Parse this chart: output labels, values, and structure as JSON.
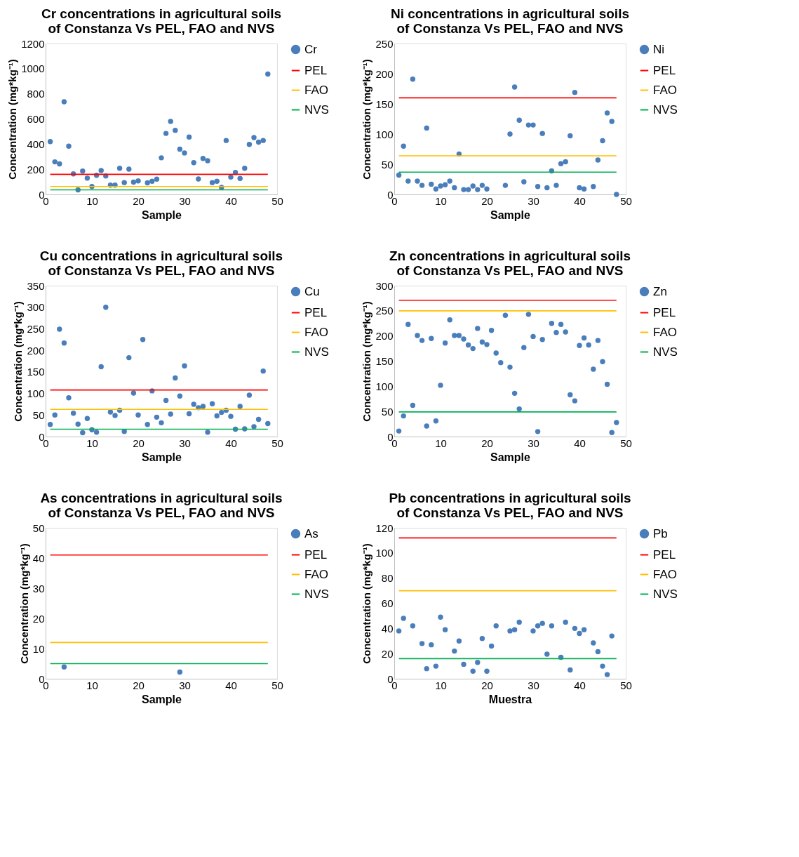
{
  "chart_data": [
    {
      "type": "scatter",
      "title": "Cr concentrations in agricultural soils of Constanza Vs PEL, FAO and NVS",
      "xlabel": "Sample",
      "ylabel": "Concentration (mg*kg⁻¹)",
      "xlim": [
        0,
        50
      ],
      "xticks": [
        0,
        10,
        20,
        30,
        40,
        50
      ],
      "ylim": [
        0,
        1200
      ],
      "yticks": [
        0,
        200,
        400,
        600,
        800,
        1000,
        1200
      ],
      "legend": "right",
      "series": [
        {
          "name": "Cr",
          "color": "#4a7ebb",
          "marker": "circle",
          "x": [
            1,
            2,
            3,
            4,
            5,
            6,
            7,
            8,
            9,
            10,
            11,
            12,
            13,
            14,
            15,
            16,
            17,
            18,
            19,
            20,
            22,
            23,
            24,
            25,
            26,
            27,
            28,
            29,
            30,
            31,
            32,
            33,
            34,
            35,
            36,
            37,
            38,
            39,
            40,
            41,
            42,
            43,
            44,
            45,
            46,
            47,
            48
          ],
          "values": [
            420,
            259,
            243,
            737,
            384,
            163,
            36,
            186,
            130,
            63,
            152,
            190,
            147,
            74,
            74,
            208,
            94,
            201,
            98,
            107,
            92,
            105,
            121,
            291,
            485,
            581,
            510,
            360,
            330,
            456,
            253,
            123,
            286,
            268,
            94,
            105,
            56,
            429,
            138,
            174,
            127,
            208,
            398,
            452,
            416,
            429,
            957
          ]
        },
        {
          "name": "PEL",
          "type": "line",
          "color": "#ff0000",
          "x": [
            1,
            48
          ],
          "values": [
            160,
            160
          ]
        },
        {
          "name": "FAO",
          "type": "line",
          "color": "#ffc000",
          "x": [
            1,
            48
          ],
          "values": [
            63,
            63
          ]
        },
        {
          "name": "NVS",
          "type": "line",
          "color": "#00b050",
          "x": [
            1,
            48
          ],
          "values": [
            36,
            36
          ]
        }
      ]
    },
    {
      "type": "scatter",
      "title": "Ni concentrations in agricultural soils of Constanza Vs PEL, FAO and NVS",
      "xlabel": "Sample",
      "ylabel": "Concentration (mg*kg⁻¹)",
      "xlim": [
        0,
        50
      ],
      "xticks": [
        0,
        10,
        20,
        30,
        40,
        50
      ],
      "ylim": [
        0,
        250
      ],
      "yticks": [
        0,
        50,
        100,
        150,
        200,
        250
      ],
      "legend": "right",
      "series": [
        {
          "name": "Ni",
          "color": "#4a7ebb",
          "marker": "circle",
          "x": [
            1,
            2,
            3,
            4,
            5,
            6,
            7,
            8,
            9,
            10,
            11,
            12,
            13,
            14,
            15,
            16,
            17,
            18,
            19,
            20,
            24,
            25,
            26,
            27,
            28,
            29,
            30,
            31,
            32,
            33,
            34,
            35,
            36,
            37,
            38,
            39,
            40,
            41,
            43,
            44,
            45,
            46,
            47,
            48
          ],
          "values": [
            32,
            80,
            22,
            191,
            22,
            15,
            110,
            17,
            9,
            14,
            16,
            22,
            11,
            67,
            8,
            8,
            14,
            8,
            15,
            9,
            15,
            100,
            178,
            123,
            21,
            115,
            115,
            13,
            101,
            11,
            39,
            15,
            51,
            54,
            97,
            169,
            11,
            9,
            13,
            57,
            89,
            135,
            121,
            0
          ]
        },
        {
          "name": "PEL",
          "type": "line",
          "color": "#ff0000",
          "x": [
            1,
            48
          ],
          "values": [
            160,
            160
          ]
        },
        {
          "name": "FAO",
          "type": "line",
          "color": "#ffc000",
          "x": [
            1,
            48
          ],
          "values": [
            64,
            64
          ]
        },
        {
          "name": "NVS",
          "type": "line",
          "color": "#00b050",
          "x": [
            1,
            48
          ],
          "values": [
            37,
            37
          ]
        }
      ]
    },
    {
      "type": "scatter",
      "title": "Cu concentrations in agricultural soils of Constanza Vs PEL, FAO and NVS",
      "xlabel": "Sample",
      "ylabel": "Concentration (mg*kg⁻¹)",
      "xlim": [
        0,
        50
      ],
      "xticks": [
        0,
        10,
        20,
        30,
        40,
        50
      ],
      "ylim": [
        0,
        350
      ],
      "yticks": [
        0,
        50,
        100,
        150,
        200,
        250,
        300,
        350
      ],
      "legend": "right",
      "series": [
        {
          "name": "Cu",
          "color": "#4a7ebb",
          "marker": "circle",
          "x": [
            1,
            2,
            3,
            4,
            5,
            6,
            7,
            8,
            9,
            10,
            11,
            12,
            13,
            14,
            15,
            16,
            17,
            18,
            19,
            20,
            21,
            22,
            23,
            24,
            25,
            26,
            27,
            28,
            29,
            30,
            31,
            32,
            33,
            34,
            35,
            36,
            37,
            38,
            39,
            40,
            41,
            42,
            43,
            44,
            45,
            46,
            47,
            48
          ],
          "values": [
            28,
            50,
            249,
            217,
            90,
            54,
            29,
            9,
            42,
            16,
            10,
            162,
            300,
            57,
            49,
            61,
            12,
            183,
            101,
            50,
            225,
            28,
            106,
            45,
            32,
            84,
            52,
            136,
            94,
            164,
            53,
            75,
            67,
            70,
            10,
            76,
            48,
            56,
            61,
            47,
            17,
            70,
            18,
            96,
            23,
            40,
            152,
            30
          ]
        },
        {
          "name": "PEL",
          "type": "line",
          "color": "#ff0000",
          "x": [
            1,
            48
          ],
          "values": [
            108,
            108
          ]
        },
        {
          "name": "FAO",
          "type": "line",
          "color": "#ffc000",
          "x": [
            1,
            48
          ],
          "values": [
            63,
            63
          ]
        },
        {
          "name": "NVS",
          "type": "line",
          "color": "#00b050",
          "x": [
            1,
            48
          ],
          "values": [
            17,
            17
          ]
        }
      ]
    },
    {
      "type": "scatter",
      "title": "Zn concentrations in agricultural soils of Constanza Vs PEL, FAO and NVS",
      "xlabel": "Sample",
      "ylabel": "Concentration (mg*kg⁻¹)",
      "xlim": [
        0,
        50
      ],
      "xticks": [
        0,
        10,
        20,
        30,
        40,
        50
      ],
      "ylim": [
        0,
        300
      ],
      "yticks": [
        0,
        50,
        100,
        150,
        200,
        250,
        300
      ],
      "legend": "right",
      "series": [
        {
          "name": "Zn",
          "color": "#4a7ebb",
          "marker": "circle",
          "x": [
            1,
            2,
            3,
            4,
            5,
            6,
            7,
            8,
            9,
            10,
            11,
            12,
            13,
            14,
            15,
            16,
            17,
            18,
            19,
            20,
            21,
            22,
            23,
            24,
            25,
            26,
            27,
            28,
            29,
            30,
            31,
            32,
            34,
            35,
            36,
            37,
            38,
            39,
            40,
            41,
            42,
            43,
            44,
            45,
            46,
            47,
            48
          ],
          "values": [
            11,
            41,
            223,
            62,
            201,
            191,
            21,
            195,
            31,
            102,
            186,
            232,
            201,
            201,
            194,
            182,
            175,
            215,
            188,
            183,
            211,
            166,
            147,
            241,
            138,
            86,
            55,
            177,
            243,
            199,
            10,
            193,
            225,
            207,
            223,
            208,
            83,
            71,
            181,
            196,
            182,
            134,
            191,
            149,
            104,
            8,
            28
          ]
        },
        {
          "name": "PEL",
          "type": "line",
          "color": "#ff0000",
          "x": [
            1,
            48
          ],
          "values": [
            271,
            271
          ]
        },
        {
          "name": "FAO",
          "type": "line",
          "color": "#ffc000",
          "x": [
            1,
            48
          ],
          "values": [
            250,
            250
          ]
        },
        {
          "name": "NVS",
          "type": "line",
          "color": "#00b050",
          "x": [
            1,
            48
          ],
          "values": [
            49,
            49
          ]
        }
      ]
    },
    {
      "type": "scatter",
      "title": "As concentrations in agricultural soils of Constanza Vs PEL, FAO and NVS",
      "xlabel": "Sample",
      "ylabel": "Concentration (mg*kg⁻¹)",
      "xlim": [
        0,
        50
      ],
      "xticks": [
        0,
        10,
        20,
        30,
        40,
        50
      ],
      "ylim": [
        0,
        50
      ],
      "yticks": [
        0,
        10,
        20,
        30,
        40,
        50
      ],
      "legend": "right",
      "series": [
        {
          "name": "As",
          "color": "#4a7ebb",
          "marker": "circle",
          "x": [
            4,
            29
          ],
          "values": [
            3.9,
            2.2
          ]
        },
        {
          "name": "PEL",
          "type": "line",
          "color": "#ff0000",
          "x": [
            1,
            48
          ],
          "values": [
            41,
            41
          ]
        },
        {
          "name": "FAO",
          "type": "line",
          "color": "#ffc000",
          "x": [
            1,
            48
          ],
          "values": [
            12,
            12
          ]
        },
        {
          "name": "NVS",
          "type": "line",
          "color": "#00b050",
          "x": [
            1,
            48
          ],
          "values": [
            5,
            5
          ]
        }
      ]
    },
    {
      "type": "scatter",
      "title": "Pb concentrations in agricultural soils of Constanza Vs PEL, FAO and NVS",
      "xlabel": "Muestra",
      "ylabel": "Concentration (mg*kg⁻¹)",
      "xlim": [
        0,
        50
      ],
      "xticks": [
        0,
        10,
        20,
        30,
        40,
        50
      ],
      "ylim": [
        0,
        120
      ],
      "yticks": [
        0,
        20,
        40,
        60,
        80,
        100,
        120
      ],
      "legend": "right",
      "series": [
        {
          "name": "Pb",
          "color": "#4a7ebb",
          "marker": "circle",
          "x": [
            1,
            2,
            4,
            6,
            7,
            8,
            9,
            10,
            11,
            13,
            14,
            15,
            17,
            18,
            19,
            20,
            21,
            22,
            25,
            26,
            27,
            30,
            31,
            32,
            33,
            34,
            36,
            37,
            38,
            39,
            40,
            41,
            43,
            44,
            45,
            46,
            47
          ],
          "values": [
            38,
            48,
            42,
            28,
            8,
            27,
            10,
            49,
            39,
            22,
            30,
            11.5,
            6,
            13,
            32,
            6,
            26,
            42,
            38,
            39,
            45,
            38,
            42,
            44,
            19.5,
            42,
            17,
            45,
            7,
            40,
            36,
            39,
            28.5,
            21.5,
            10,
            3.3,
            34
          ]
        },
        {
          "name": "PEL",
          "type": "line",
          "color": "#ff0000",
          "x": [
            1,
            48
          ],
          "values": [
            112,
            112
          ]
        },
        {
          "name": "FAO",
          "type": "line",
          "color": "#ffc000",
          "x": [
            1,
            48
          ],
          "values": [
            70,
            70
          ]
        },
        {
          "name": "NVS",
          "type": "line",
          "color": "#00b050",
          "x": [
            1,
            48
          ],
          "values": [
            16,
            16
          ]
        }
      ]
    }
  ]
}
